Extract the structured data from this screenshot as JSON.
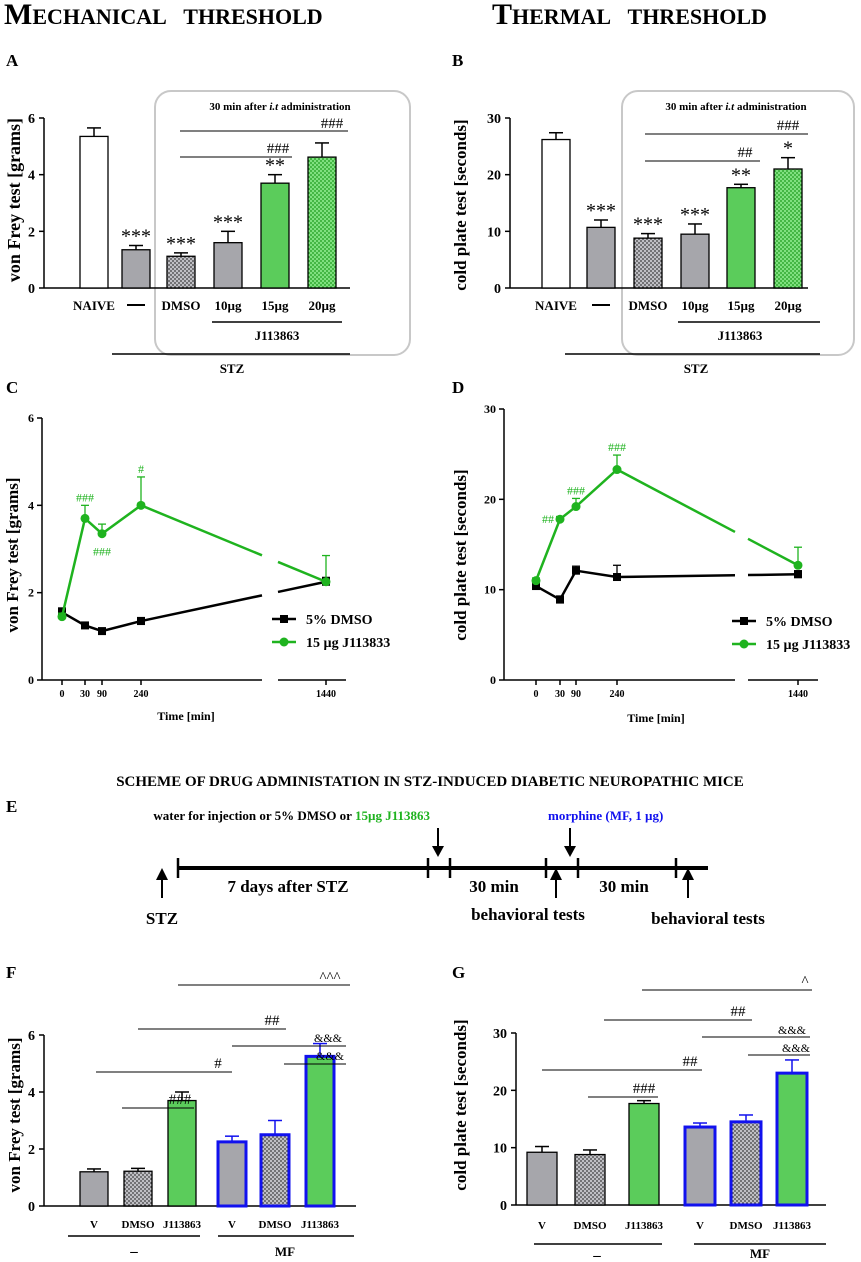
{
  "headings": {
    "mechanical": "Mechanical threshold",
    "thermal": "Thermal threshold"
  },
  "colors": {
    "green": "#1fb31f",
    "green_fill": "#5bcc5b",
    "gray": "#a6a6ab",
    "blue": "#1111ee",
    "black": "#000000"
  },
  "panelA": {
    "letter": "A",
    "ylabel": "von Frey test [grams]",
    "box_title": "30 min after i.t administration",
    "box_title_pre": "30 min after ",
    "box_title_em": "i.t",
    "box_title_post": " administration",
    "sig_labels": [
      "###",
      "###"
    ],
    "group_label": "J113863",
    "stz_label": "STZ"
  },
  "panelB": {
    "letter": "B",
    "ylabel": "cold plate test [seconds]",
    "box_title_pre": "30 min after ",
    "box_title_em": "i.t",
    "box_title_post": " administration",
    "sig_labels": [
      "###",
      "##"
    ],
    "group_label": "J113863",
    "stz_label": "STZ"
  },
  "panelC": {
    "letter": "C",
    "ylabel": "von Frey test [grams]",
    "xlabel": "Time [min]"
  },
  "panelD": {
    "letter": "D",
    "ylabel": "cold plate test [seconds]",
    "xlabel": "Time [min]"
  },
  "scheme": {
    "letter": "E",
    "title": "SCHEME OF DRUG ADMINISTATION IN STZ-INDUCED DIABETIC NEUROPATHIC MICE",
    "injection_pre": "water for injection or 5% DMSO or ",
    "injection_green": "15µg J113863",
    "morphine": "morphine (MF, 1 µg)",
    "seg1": "7 days after STZ",
    "seg2": "30 min",
    "seg3": "30 min",
    "stz": "STZ",
    "tests1": "behavioral tests",
    "tests2": "behavioral tests"
  },
  "panelF": {
    "letter": "F",
    "ylabel": "von Frey test [grams]",
    "group_minus": "–",
    "group_mf": "MF",
    "sig_labels": [
      "^^^",
      "##",
      "&&&",
      "#",
      "&&&",
      "###"
    ]
  },
  "panelG": {
    "letter": "G",
    "ylabel": "cold plate test [seconds]",
    "group_minus": "–",
    "group_mf": "MF",
    "sig_labels": [
      "^",
      "##",
      "&&&",
      "##",
      "&&&",
      "###"
    ]
  },
  "chart_data": [
    {
      "panel": "A",
      "type": "bar",
      "title": "Mechanical threshold",
      "ylabel": "von Frey test [grams]",
      "ylim": [
        0,
        6
      ],
      "yticks": [
        0,
        2,
        4,
        6
      ],
      "categories": [
        "NAIVE",
        "—",
        "DMSO",
        "10µg",
        "15µg",
        "20µg"
      ],
      "values": [
        5.35,
        1.35,
        1.12,
        1.6,
        3.7,
        4.62
      ],
      "errors": [
        0.3,
        0.15,
        0.12,
        0.4,
        0.3,
        0.5
      ],
      "annotations": [
        "",
        "***",
        "***",
        "***",
        "**",
        ""
      ]
    },
    {
      "panel": "B",
      "type": "bar",
      "title": "Thermal threshold",
      "ylabel": "cold plate test [seconds]",
      "ylim": [
        0,
        30
      ],
      "yticks": [
        0,
        10,
        20,
        30
      ],
      "categories": [
        "NAIVE",
        "—",
        "DMSO",
        "10µg",
        "15µg",
        "20µg"
      ],
      "values": [
        26.2,
        10.7,
        8.8,
        9.5,
        17.7,
        21.0
      ],
      "errors": [
        1.2,
        1.3,
        0.8,
        1.8,
        0.6,
        2.0
      ],
      "annotations": [
        "",
        "***",
        "***",
        "***",
        "**",
        "*"
      ]
    },
    {
      "panel": "C",
      "type": "line",
      "ylabel": "von Frey test [grams]",
      "xlabel": "Time [min]",
      "ylim": [
        0,
        6
      ],
      "yticks": [
        0,
        2,
        4,
        6
      ],
      "x": [
        0,
        30,
        90,
        240,
        1440
      ],
      "x_tick_labels": [
        "0",
        "30",
        "90",
        "240",
        "1440"
      ],
      "series": [
        {
          "name": "5% DMSO",
          "values": [
            1.55,
            1.25,
            1.12,
            1.35,
            2.25
          ],
          "errors": [
            0.1,
            0.06,
            0.06,
            0.08,
            0.1
          ]
        },
        {
          "name": "15 µg J113833",
          "values": [
            1.45,
            3.7,
            3.35,
            4.0,
            2.25
          ],
          "errors": [
            0.08,
            0.3,
            0.22,
            0.65,
            0.6
          ]
        }
      ],
      "annotations": [
        {
          "text": "###",
          "x": 30,
          "where": "above"
        },
        {
          "text": "###",
          "x": 90,
          "where": "below"
        },
        {
          "text": "#",
          "x": 240,
          "where": "above"
        }
      ]
    },
    {
      "panel": "D",
      "type": "line",
      "ylabel": "cold plate test [seconds]",
      "xlabel": "Time [min]",
      "ylim": [
        0,
        30
      ],
      "yticks": [
        0,
        10,
        20,
        30
      ],
      "x": [
        0,
        30,
        90,
        240,
        1440
      ],
      "x_tick_labels": [
        "0",
        "30",
        "90",
        "240",
        "1440"
      ],
      "series": [
        {
          "name": "5% DMSO",
          "values": [
            10.4,
            8.9,
            12.1,
            11.4,
            11.7
          ],
          "errors": [
            0.4,
            0.4,
            0.5,
            1.3,
            0.4
          ]
        },
        {
          "name": "15 µg J113833",
          "values": [
            11.0,
            17.8,
            19.2,
            23.3,
            12.7
          ],
          "errors": [
            0.3,
            0.3,
            0.9,
            1.6,
            2.0
          ]
        }
      ],
      "annotations": [
        {
          "text": "##",
          "x": 30,
          "where": "left"
        },
        {
          "text": "###",
          "x": 90,
          "where": "above"
        },
        {
          "text": "###",
          "x": 240,
          "where": "above"
        }
      ]
    },
    {
      "panel": "F",
      "type": "bar",
      "ylabel": "von Frey test [grams]",
      "ylim": [
        0,
        6
      ],
      "yticks": [
        0,
        2,
        4,
        6
      ],
      "categories": [
        "V",
        "DMSO",
        "J113863",
        "V",
        "DMSO",
        "J113863"
      ],
      "groups": [
        "–",
        "–",
        "–",
        "MF",
        "MF",
        "MF"
      ],
      "values": [
        1.2,
        1.22,
        3.7,
        2.25,
        2.5,
        5.25
      ],
      "errors": [
        0.1,
        0.1,
        0.3,
        0.2,
        0.5,
        0.45
      ]
    },
    {
      "panel": "G",
      "type": "bar",
      "ylabel": "cold plate test [seconds]",
      "ylim": [
        0,
        30
      ],
      "yticks": [
        0,
        10,
        20,
        30
      ],
      "categories": [
        "V",
        "DMSO",
        "J113863",
        "V",
        "DMSO",
        "J113863"
      ],
      "groups": [
        "–",
        "–",
        "–",
        "MF",
        "MF",
        "MF"
      ],
      "values": [
        9.2,
        8.8,
        17.7,
        13.6,
        14.5,
        23.0
      ],
      "errors": [
        1.0,
        0.8,
        0.5,
        0.7,
        1.2,
        2.3
      ]
    }
  ]
}
